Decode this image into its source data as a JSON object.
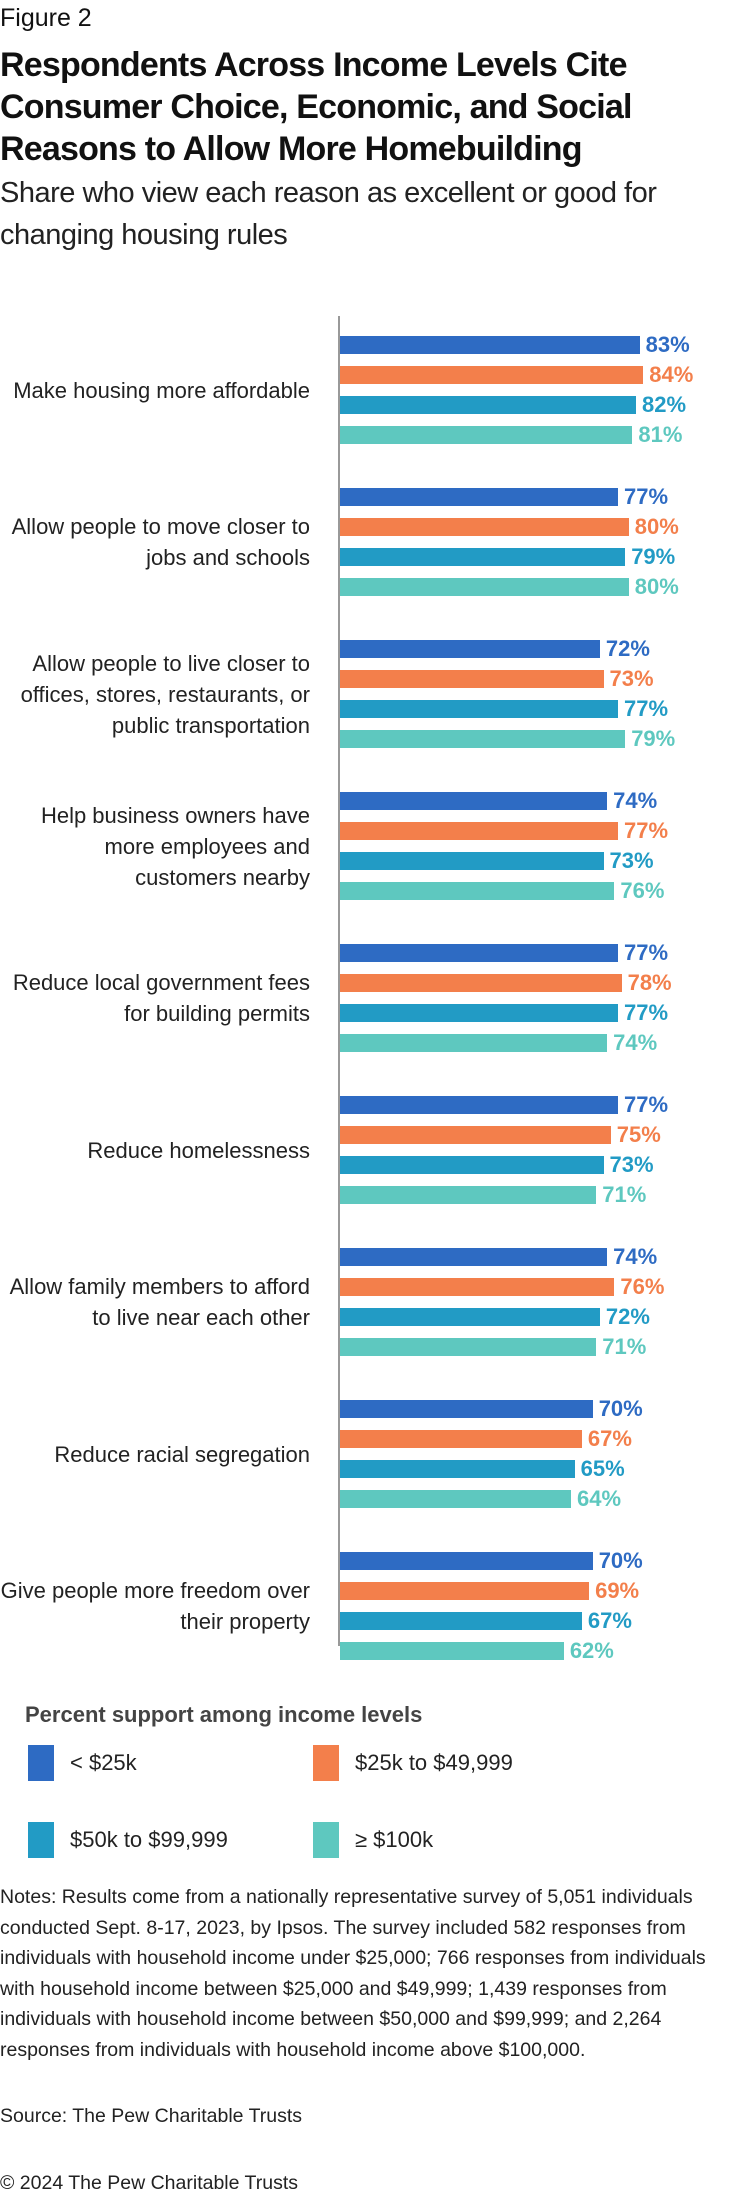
{
  "figure_label": "Figure 2",
  "chart_data": {
    "type": "bar",
    "orientation": "horizontal-grouped",
    "title": "Respondents Across Income Levels Cite Consumer Choice, Economic, and Social Reasons to Allow More Homebuilding",
    "subtitle": "Share who view each reason as excellent or good for changing housing rules",
    "categories": [
      "Make housing more affordable",
      "Allow people to move closer to jobs and schools",
      "Allow people to live closer to offices, stores, restaurants, or public transportation",
      "Help business owners have more employees and customers nearby",
      "Reduce local government fees for building permits",
      "Reduce homelessness",
      "Allow family members to afford to live near each other",
      "Reduce racial segregation",
      "Give people more freedom over their property"
    ],
    "series": [
      {
        "name": "< $25k",
        "color": "#2e6bc3",
        "values": [
          83,
          77,
          72,
          74,
          77,
          77,
          74,
          70,
          70
        ]
      },
      {
        "name": "$25k to $49,999",
        "color": "#f37f4b",
        "values": [
          84,
          80,
          73,
          77,
          78,
          75,
          76,
          67,
          69
        ]
      },
      {
        "name": "$50k to $99,999",
        "color": "#229bc5",
        "values": [
          82,
          79,
          77,
          73,
          77,
          73,
          72,
          65,
          67
        ]
      },
      {
        "name": "≥ $100k",
        "color": "#5ec8bf",
        "values": [
          81,
          80,
          79,
          76,
          74,
          71,
          71,
          64,
          62
        ]
      }
    ],
    "value_suffix": "%",
    "xlim": [
      0,
      100
    ],
    "grid": false,
    "legend_title": "Percent support among income levels",
    "legend_position": "bottom"
  },
  "notes": "Notes: Results come from a nationally representative survey of 5,051 individuals conducted Sept. 8-17, 2023, by Ipsos. The survey included 582 responses from individuals with household income under $25,000; 766 responses from individuals with household income between $25,000 and $49,999; 1,439 responses from individuals with household income between $50,000 and $99,999; and 2,264 responses from individuals with household income above $100,000.",
  "source": "Source: The Pew Charitable Trusts",
  "copyright": "© 2024 The Pew Charitable Trusts"
}
